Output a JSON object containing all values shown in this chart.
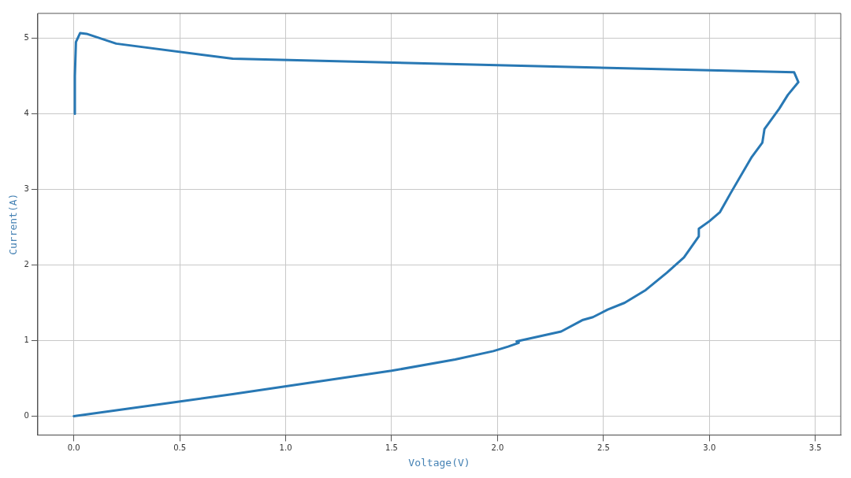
{
  "chart_data": {
    "type": "line",
    "xlabel": "Voltage(V)",
    "ylabel": "Current(A)",
    "x": [
      0,
      0.75,
      1.5,
      1.8,
      1.98,
      2.05,
      2.1,
      2.09,
      2.3,
      2.4,
      2.45,
      2.52,
      2.6,
      2.7,
      2.8,
      2.88,
      2.95,
      2.95,
      3.0,
      3.05,
      3.1,
      3.2,
      3.25,
      3.26,
      3.33,
      3.37,
      3.42,
      3.4,
      0.75,
      0.2,
      0.06,
      0.03,
      0.01,
      0.005,
      0.005
    ],
    "series": [
      {
        "color": "#2878b4",
        "values": [
          0,
          0.29,
          0.6,
          0.75,
          0.86,
          0.92,
          0.97,
          0.99,
          1.12,
          1.27,
          1.31,
          1.41,
          1.5,
          1.67,
          1.9,
          2.1,
          2.38,
          2.48,
          2.58,
          2.7,
          2.95,
          3.43,
          3.62,
          3.8,
          4.07,
          4.25,
          4.42,
          4.55,
          4.73,
          4.93,
          5.06,
          5.07,
          4.95,
          4.5,
          4.0
        ]
      }
    ],
    "xlim": [
      -0.17,
      3.62
    ],
    "ylim": [
      -0.25,
      5.33
    ],
    "xticks": [
      {
        "value": 0,
        "label": "0.0"
      },
      0.5,
      {
        "value": 1,
        "label": "1.0"
      },
      1.5,
      {
        "value": 2,
        "label": "2.0"
      },
      2.5,
      {
        "value": 3,
        "label": "3.0"
      },
      3.5
    ],
    "yticks": [
      0,
      1,
      2,
      3,
      4,
      5
    ],
    "grid": true,
    "legend": false,
    "marker": "none",
    "line_style": "solid"
  }
}
